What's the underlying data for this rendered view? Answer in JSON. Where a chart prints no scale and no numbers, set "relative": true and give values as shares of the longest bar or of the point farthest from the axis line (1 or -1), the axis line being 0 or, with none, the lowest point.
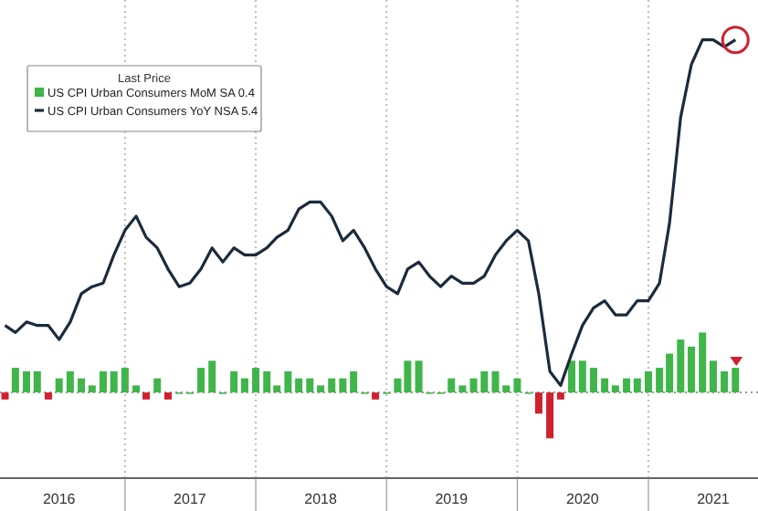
{
  "chart_data": {
    "type": "bar",
    "relative": true,
    "legend_title": "Last Price",
    "legend": "top left",
    "grid": "x",
    "ref_lines": [
      {
        "axis": "y",
        "value": 0,
        "color": "#999999",
        "line_style": "dotted"
      }
    ],
    "tick_labels": "x",
    "x": [
      "2016-02",
      "2016-03",
      "2016-04",
      "2016-05",
      "2016-06",
      "2016-07",
      "2016-08",
      "2016-09",
      "2016-10",
      "2016-11",
      "2016-12",
      "2017-01",
      "2017-02",
      "2017-03",
      "2017-04",
      "2017-05",
      "2017-06",
      "2017-07",
      "2017-08",
      "2017-09",
      "2017-10",
      "2017-11",
      "2017-12",
      "2018-01",
      "2018-02",
      "2018-03",
      "2018-04",
      "2018-05",
      "2018-06",
      "2018-07",
      "2018-08",
      "2018-09",
      "2018-10",
      "2018-11",
      "2018-12",
      "2019-01",
      "2019-02",
      "2019-03",
      "2019-04",
      "2019-05",
      "2019-06",
      "2019-07",
      "2019-08",
      "2019-09",
      "2019-10",
      "2019-11",
      "2019-12",
      "2020-01",
      "2020-02",
      "2020-03",
      "2020-04",
      "2020-05",
      "2020-06",
      "2020-07",
      "2020-08",
      "2020-09",
      "2020-10",
      "2020-11",
      "2020-12",
      "2021-01",
      "2021-02",
      "2021-03",
      "2021-04",
      "2021-05",
      "2021-06",
      "2021-07",
      "2021-08",
      "2021-09"
    ],
    "series": [
      {
        "name": "US CPI Urban Consumers MoM SA 0.4",
        "color": "#3fb54a",
        "values": [
          -0.02,
          0.07,
          0.06,
          0.06,
          -0.02,
          0.04,
          0.06,
          0.04,
          0.02,
          0.06,
          0.06,
          0.07,
          0.02,
          -0.02,
          0.04,
          -0.02,
          0,
          0,
          0.07,
          0.09,
          0,
          0.06,
          0.04,
          0.07,
          0.06,
          0.02,
          0.06,
          0.04,
          0.04,
          0.02,
          0.04,
          0.04,
          0.06,
          0,
          -0.02,
          0,
          0.04,
          0.09,
          0.09,
          0,
          0,
          0.04,
          0.02,
          0.04,
          0.06,
          0.06,
          0.02,
          0.04,
          0,
          -0.06,
          -0.13,
          -0.02,
          0.09,
          0.09,
          0.07,
          0.04,
          0.02,
          0.04,
          0.04,
          0.06,
          0.07,
          0.11,
          0.15,
          0.13,
          0.17,
          0.09,
          0.06,
          0.07
        ],
        "colors": [
          "#d0202e",
          "#3fb54a",
          "#3fb54a",
          "#3fb54a",
          "#d0202e",
          "#3fb54a",
          "#3fb54a",
          "#3fb54a",
          "#3fb54a",
          "#3fb54a",
          "#3fb54a",
          "#3fb54a",
          "#3fb54a",
          "#d0202e",
          "#3fb54a",
          "#d0202e",
          "#3fb54a",
          "#3fb54a",
          "#3fb54a",
          "#3fb54a",
          "#3fb54a",
          "#3fb54a",
          "#3fb54a",
          "#3fb54a",
          "#3fb54a",
          "#3fb54a",
          "#3fb54a",
          "#3fb54a",
          "#3fb54a",
          "#3fb54a",
          "#3fb54a",
          "#3fb54a",
          "#3fb54a",
          "#3fb54a",
          "#d0202e",
          "#3fb54a",
          "#3fb54a",
          "#3fb54a",
          "#3fb54a",
          "#3fb54a",
          "#3fb54a",
          "#3fb54a",
          "#3fb54a",
          "#3fb54a",
          "#3fb54a",
          "#3fb54a",
          "#3fb54a",
          "#3fb54a",
          "#3fb54a",
          "#d0202e",
          "#d0202e",
          "#d0202e",
          "#3fb54a",
          "#3fb54a",
          "#3fb54a",
          "#3fb54a",
          "#3fb54a",
          "#3fb54a",
          "#3fb54a",
          "#3fb54a",
          "#3fb54a",
          "#3fb54a",
          "#3fb54a",
          "#3fb54a",
          "#3fb54a",
          "#3fb54a",
          "#3fb54a",
          "#3fb54a"
        ]
      },
      {
        "name": "US CPI Urban Consumers YoY NSA 5.4",
        "type": "line",
        "color": "#1c2b3c",
        "values": [
          0.19,
          0.17,
          0.2,
          0.19,
          0.19,
          0.15,
          0.2,
          0.28,
          0.3,
          0.31,
          0.39,
          0.46,
          0.5,
          0.44,
          0.41,
          0.35,
          0.3,
          0.31,
          0.35,
          0.41,
          0.37,
          0.41,
          0.39,
          0.39,
          0.41,
          0.44,
          0.46,
          0.52,
          0.54,
          0.54,
          0.5,
          0.43,
          0.46,
          0.41,
          0.35,
          0.3,
          0.28,
          0.35,
          0.37,
          0.33,
          0.3,
          0.33,
          0.31,
          0.31,
          0.33,
          0.39,
          0.43,
          0.46,
          0.43,
          0.28,
          0.06,
          0.02,
          0.11,
          0.19,
          0.24,
          0.26,
          0.22,
          0.22,
          0.26,
          0.26,
          0.31,
          0.48,
          0.78,
          0.93,
          1,
          1,
          0.98,
          1
        ]
      }
    ],
    "xlim": [
      "2016-01-18",
      "2021-11-03"
    ],
    "xticks": [
      {
        "value": "2016-07-01",
        "label": "2016"
      },
      {
        "value": "2017-01-01",
        "label": null
      },
      {
        "value": "2017-07-01",
        "label": "2017"
      },
      {
        "value": "2018-01-01",
        "label": null
      },
      {
        "value": "2018-07-01",
        "label": "2018"
      },
      {
        "value": "2019-01-01",
        "label": null
      },
      {
        "value": "2019-07-01",
        "label": "2019"
      },
      {
        "value": "2020-01-01",
        "label": null
      },
      {
        "value": "2020-07-01",
        "label": "2020"
      },
      {
        "value": "2021-01-01",
        "label": null
      },
      {
        "value": "2021-07-01",
        "label": "2021"
      }
    ]
  }
}
